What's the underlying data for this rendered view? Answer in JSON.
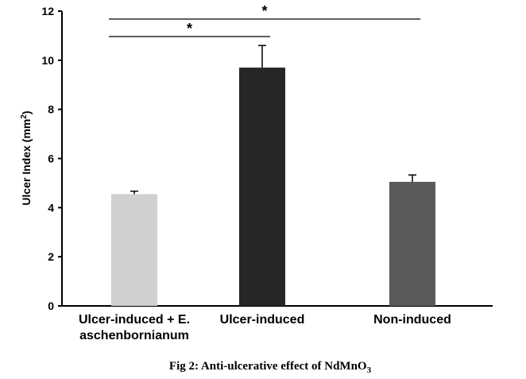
{
  "chart_data": {
    "type": "bar",
    "categories": [
      [
        "Ulcer-induced + E.",
        "aschenbornianum"
      ],
      [
        "Ulcer-induced"
      ],
      [
        "Non-induced"
      ]
    ],
    "values": [
      4.55,
      9.7,
      5.05
    ],
    "errors": [
      0.12,
      0.9,
      0.28
    ],
    "colors": [
      "#d0d0d0",
      "#262626",
      "#5a5a5a"
    ],
    "ylabel": "Ulcer Index (mm",
    "ylabel_sup": "2",
    "ylabel_end": ")",
    "ylim": [
      0,
      12
    ],
    "yticks": [
      0,
      2,
      4,
      6,
      8,
      10,
      12
    ],
    "significance": [
      {
        "from": 0,
        "to": 1,
        "label": "*"
      },
      {
        "from": 0,
        "to": 2,
        "label": "*"
      }
    ],
    "grid": false
  },
  "caption": {
    "text": "Fig 2: Anti-ulcerative effect of NdMnO",
    "sub": "3"
  }
}
